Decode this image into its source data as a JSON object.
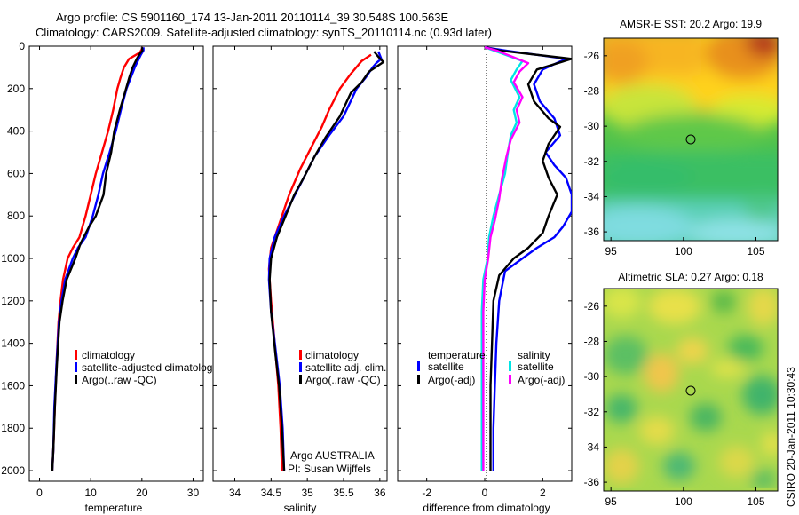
{
  "figure": {
    "title_line1": "Argo profile: CS 5901160_174 13-Jan-2011 20110114_39 30.548S 100.563E",
    "title_line2": "Climatology: CARS2009. Satellite-adjusted climatology: synTS_20110114.nc (0.93d later)",
    "timestamp": "CSIRO 20-Jan-2011 10:30:43"
  },
  "colors": {
    "climatology": "#ff0000",
    "satellite": "#0000ff",
    "argo": "#000000",
    "sat_salinity": "#00e5e5",
    "argo_salinity": "#ff00ff"
  },
  "chart_data": [
    {
      "type": "line",
      "name": "temperature-profile",
      "xlabel": "temperature",
      "xlim": [
        -2,
        32
      ],
      "ylim": [
        2050,
        0
      ],
      "x_ticks": [
        "0",
        "10",
        "20",
        "30"
      ],
      "y_ticks": [
        "0",
        "200",
        "400",
        "600",
        "800",
        "1000",
        "1200",
        "1400",
        "1600",
        "1800",
        "2000"
      ],
      "legend": [
        "climatology",
        "satellite-adjusted climatology",
        "Argo(..raw -QC)"
      ],
      "series": [
        {
          "name": "climatology",
          "color": "#ff0000",
          "points": [
            [
              20.2,
              5
            ],
            [
              19.6,
              30
            ],
            [
              17.5,
              60
            ],
            [
              16.5,
              100
            ],
            [
              15.8,
              150
            ],
            [
              15.2,
              200
            ],
            [
              14.4,
              300
            ],
            [
              13.4,
              400
            ],
            [
              12.2,
              500
            ],
            [
              11.0,
              600
            ],
            [
              10.0,
              700
            ],
            [
              9.0,
              800
            ],
            [
              7.8,
              900
            ],
            [
              6.5,
              950
            ],
            [
              5.5,
              1000
            ],
            [
              4.6,
              1100
            ],
            [
              4.1,
              1200
            ],
            [
              3.7,
              1300
            ],
            [
              3.3,
              1500
            ],
            [
              3.0,
              1700
            ],
            [
              2.7,
              1900
            ],
            [
              2.5,
              2000
            ]
          ]
        },
        {
          "name": "satellite-adjusted climatology",
          "color": "#0000ff",
          "points": [
            [
              20.3,
              5
            ],
            [
              20.3,
              20
            ],
            [
              19.8,
              40
            ],
            [
              19.4,
              60
            ],
            [
              18.6,
              100
            ],
            [
              17.8,
              150
            ],
            [
              17.0,
              200
            ],
            [
              15.9,
              300
            ],
            [
              14.9,
              400
            ],
            [
              13.7,
              500
            ],
            [
              12.4,
              600
            ],
            [
              11.5,
              700
            ],
            [
              10.4,
              800
            ],
            [
              9.0,
              900
            ],
            [
              7.5,
              950
            ],
            [
              6.5,
              1000
            ],
            [
              5.0,
              1100
            ],
            [
              4.3,
              1200
            ],
            [
              3.8,
              1300
            ],
            [
              3.3,
              1500
            ],
            [
              2.9,
              1700
            ],
            [
              2.7,
              1900
            ],
            [
              2.5,
              2000
            ]
          ]
        },
        {
          "name": "Argo(..raw -QC)",
          "color": "#000000",
          "points": [
            [
              20.0,
              5
            ],
            [
              20.1,
              20
            ],
            [
              19.5,
              40
            ],
            [
              19.0,
              60
            ],
            [
              18.2,
              100
            ],
            [
              17.5,
              150
            ],
            [
              16.9,
              200
            ],
            [
              15.7,
              300
            ],
            [
              14.6,
              400
            ],
            [
              14.0,
              500
            ],
            [
              13.0,
              600
            ],
            [
              12.5,
              700
            ],
            [
              11.0,
              800
            ],
            [
              9.7,
              850
            ],
            [
              8.0,
              930
            ],
            [
              7.0,
              1000
            ],
            [
              5.3,
              1100
            ],
            [
              4.5,
              1200
            ],
            [
              3.9,
              1300
            ],
            [
              3.4,
              1500
            ],
            [
              3.0,
              1700
            ],
            [
              2.7,
              1900
            ],
            [
              2.5,
              2000
            ]
          ]
        }
      ]
    },
    {
      "type": "line",
      "name": "salinity-profile",
      "xlabel": "salinity",
      "xlim": [
        33.7,
        36.1
      ],
      "ylim": [
        2050,
        0
      ],
      "x_ticks": [
        "34",
        "34.5",
        "35",
        "35.5",
        "36"
      ],
      "legend": [
        "climatology",
        "satellite adj. clim.",
        "Argo(..raw -QC)"
      ],
      "annotation": [
        "Argo AUSTRALIA",
        "PI: Susan Wijffels"
      ],
      "series": [
        {
          "name": "climatology",
          "color": "#ff0000",
          "points": [
            [
              35.88,
              40
            ],
            [
              35.75,
              70
            ],
            [
              35.6,
              130
            ],
            [
              35.45,
              200
            ],
            [
              35.3,
              300
            ],
            [
              35.2,
              380
            ],
            [
              35.05,
              480
            ],
            [
              34.9,
              580
            ],
            [
              34.75,
              700
            ],
            [
              34.6,
              850
            ],
            [
              34.5,
              950
            ],
            [
              34.47,
              1050
            ],
            [
              34.5,
              1200
            ],
            [
              34.55,
              1400
            ],
            [
              34.6,
              1600
            ],
            [
              34.63,
              1800
            ],
            [
              34.65,
              2000
            ]
          ]
        },
        {
          "name": "satellite adj. clim.",
          "color": "#0000ff",
          "points": [
            [
              35.98,
              25
            ],
            [
              36.02,
              60
            ],
            [
              35.95,
              80
            ],
            [
              35.9,
              100
            ],
            [
              35.8,
              150
            ],
            [
              35.68,
              200
            ],
            [
              35.5,
              330
            ],
            [
              35.3,
              420
            ],
            [
              35.1,
              520
            ],
            [
              34.95,
              620
            ],
            [
              34.8,
              720
            ],
            [
              34.68,
              800
            ],
            [
              34.55,
              900
            ],
            [
              34.48,
              1000
            ],
            [
              34.47,
              1100
            ],
            [
              34.5,
              1250
            ],
            [
              34.57,
              1450
            ],
            [
              34.62,
              1600
            ],
            [
              34.66,
              1800
            ],
            [
              34.68,
              2000
            ]
          ]
        },
        {
          "name": "Argo(..raw -QC)",
          "color": "#000000",
          "points": [
            [
              35.92,
              25
            ],
            [
              35.98,
              50
            ],
            [
              36.05,
              75
            ],
            [
              35.85,
              120
            ],
            [
              35.75,
              170
            ],
            [
              35.6,
              220
            ],
            [
              35.45,
              330
            ],
            [
              35.25,
              430
            ],
            [
              35.1,
              520
            ],
            [
              34.95,
              620
            ],
            [
              34.82,
              700
            ],
            [
              34.7,
              800
            ],
            [
              34.58,
              900
            ],
            [
              34.5,
              1000
            ],
            [
              34.48,
              1100
            ],
            [
              34.5,
              1250
            ],
            [
              34.56,
              1450
            ],
            [
              34.61,
              1600
            ],
            [
              34.65,
              1800
            ],
            [
              34.68,
              2000
            ]
          ]
        }
      ]
    },
    {
      "type": "line",
      "name": "difference-profile",
      "xlabel": "difference from climatology",
      "xlim": [
        -3,
        3
      ],
      "ylim": [
        2050,
        0
      ],
      "x_ticks": [
        "-2",
        "0",
        "2"
      ],
      "legend_headers": [
        "temperature",
        "salinity"
      ],
      "legend": [
        "satellite",
        "Argo(-adj)",
        "satellite",
        "Argo(-adj)"
      ],
      "series": [
        {
          "name": "temperature satellite",
          "color": "#0000ff",
          "points": [
            [
              0,
              5
            ],
            [
              0.7,
              20
            ],
            [
              2.8,
              60
            ],
            [
              2.0,
              110
            ],
            [
              1.7,
              180
            ],
            [
              1.9,
              260
            ],
            [
              2.4,
              340
            ],
            [
              2.6,
              420
            ],
            [
              2.1,
              500
            ],
            [
              2.4,
              560
            ],
            [
              2.8,
              620
            ],
            [
              3.0,
              700
            ],
            [
              3.0,
              780
            ],
            [
              2.7,
              850
            ],
            [
              2.4,
              900
            ],
            [
              1.8,
              950
            ],
            [
              1.3,
              1000
            ],
            [
              0.7,
              1060
            ],
            [
              0.5,
              1200
            ],
            [
              0.4,
              1400
            ],
            [
              0.35,
              1600
            ],
            [
              0.3,
              1800
            ],
            [
              0.3,
              2000
            ]
          ]
        },
        {
          "name": "temperature Argo(-adj)",
          "color": "#000000",
          "points": [
            [
              0,
              5
            ],
            [
              0.5,
              20
            ],
            [
              3.0,
              60
            ],
            [
              1.8,
              110
            ],
            [
              1.5,
              180
            ],
            [
              1.7,
              260
            ],
            [
              2.2,
              340
            ],
            [
              2.6,
              380
            ],
            [
              2.2,
              460
            ],
            [
              2.0,
              540
            ],
            [
              2.2,
              620
            ],
            [
              2.5,
              700
            ],
            [
              2.2,
              800
            ],
            [
              2.0,
              880
            ],
            [
              1.5,
              950
            ],
            [
              1.0,
              1000
            ],
            [
              0.5,
              1080
            ],
            [
              0.3,
              1200
            ],
            [
              0.25,
              1400
            ],
            [
              0.2,
              1600
            ],
            [
              0.2,
              1800
            ],
            [
              0.2,
              2000
            ]
          ]
        },
        {
          "name": "salinity satellite",
          "color": "#00e5e5",
          "points": [
            [
              0,
              5
            ],
            [
              0.3,
              20
            ],
            [
              1.3,
              70
            ],
            [
              1.1,
              110
            ],
            [
              0.9,
              160
            ],
            [
              1.2,
              240
            ],
            [
              1.0,
              300
            ],
            [
              1.1,
              360
            ],
            [
              0.9,
              420
            ],
            [
              0.8,
              500
            ],
            [
              0.7,
              600
            ],
            [
              0.5,
              700
            ],
            [
              0.3,
              800
            ],
            [
              0.15,
              900
            ],
            [
              0.1,
              1000
            ],
            [
              -0.05,
              1100
            ],
            [
              -0.1,
              1250
            ],
            [
              -0.1,
              1400
            ],
            [
              -0.1,
              1600
            ],
            [
              -0.1,
              1800
            ],
            [
              -0.1,
              2000
            ]
          ]
        },
        {
          "name": "salinity Argo(-adj)",
          "color": "#ff00ff",
          "points": [
            [
              0,
              5
            ],
            [
              0.4,
              20
            ],
            [
              1.5,
              80
            ],
            [
              1.2,
              120
            ],
            [
              1.0,
              170
            ],
            [
              1.3,
              240
            ],
            [
              1.1,
              300
            ],
            [
              1.2,
              360
            ],
            [
              0.9,
              440
            ],
            [
              0.75,
              520
            ],
            [
              0.6,
              620
            ],
            [
              0.5,
              720
            ],
            [
              0.35,
              820
            ],
            [
              0.2,
              900
            ],
            [
              0.12,
              1000
            ],
            [
              0.0,
              1100
            ],
            [
              -0.05,
              1250
            ],
            [
              -0.05,
              1400
            ],
            [
              -0.05,
              1600
            ],
            [
              -0.05,
              1800
            ],
            [
              -0.05,
              2000
            ]
          ]
        }
      ]
    },
    {
      "type": "heatmap",
      "name": "sst-map",
      "title": "AMSR-E SST: 20.2 Argo: 19.9",
      "x_ticks": [
        "95",
        "100",
        "105"
      ],
      "y_ticks": [
        "-26",
        "-28",
        "-30",
        "-32",
        "-34",
        "-36"
      ],
      "xlim": [
        94.5,
        106.5
      ],
      "ylim": [
        -36.5,
        -25
      ]
    },
    {
      "type": "heatmap",
      "name": "sla-map",
      "title": "Altimetric SLA: 0.27 Argo: 0.18",
      "x_ticks": [
        "95",
        "100",
        "105"
      ],
      "y_ticks": [
        "-26",
        "-28",
        "-30",
        "-32",
        "-34",
        "-36"
      ],
      "xlim": [
        94.5,
        106.5
      ],
      "ylim": [
        -36.5,
        -25
      ]
    }
  ]
}
